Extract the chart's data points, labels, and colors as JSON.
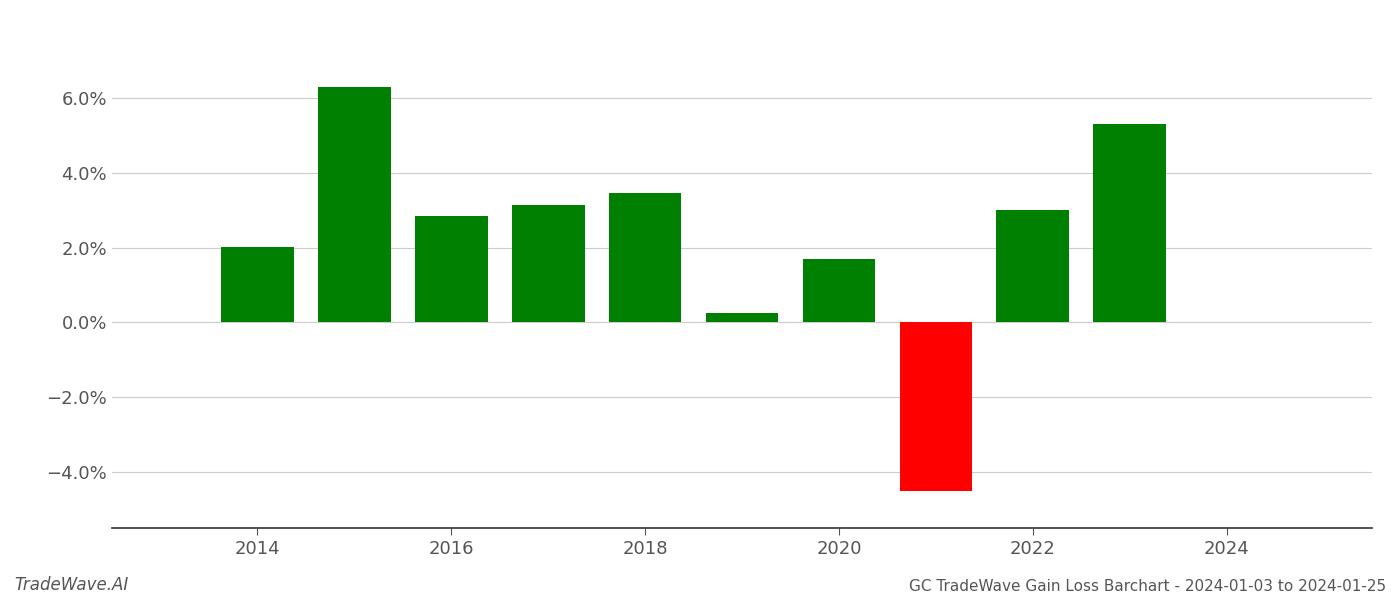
{
  "years": [
    2014,
    2015,
    2016,
    2017,
    2018,
    2019,
    2020,
    2021,
    2022,
    2023
  ],
  "values": [
    0.0202,
    0.063,
    0.0285,
    0.0315,
    0.0345,
    0.0025,
    0.017,
    -0.045,
    0.03,
    0.053
  ],
  "colors": [
    "#008000",
    "#008000",
    "#008000",
    "#008000",
    "#008000",
    "#008000",
    "#008000",
    "#ff0000",
    "#008000",
    "#008000"
  ],
  "title": "GC TradeWave Gain Loss Barchart - 2024-01-03 to 2024-01-25",
  "watermark": "TradeWave.AI",
  "ylim_min": -0.055,
  "ylim_max": 0.075,
  "yticks": [
    -0.04,
    -0.02,
    0.0,
    0.02,
    0.04,
    0.06
  ],
  "xticks": [
    2014,
    2016,
    2018,
    2020,
    2022,
    2024
  ],
  "xlim_min": 2012.5,
  "xlim_max": 2025.5,
  "background_color": "#ffffff",
  "grid_color": "#cccccc",
  "bar_width": 0.75,
  "title_fontsize": 11,
  "tick_fontsize": 13,
  "watermark_fontsize": 12
}
